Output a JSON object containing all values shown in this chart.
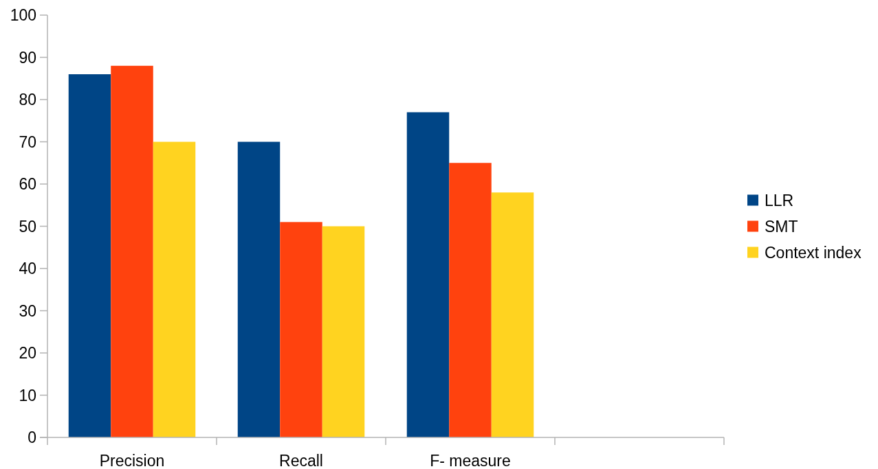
{
  "chart_data": {
    "type": "bar",
    "categories": [
      "Precision",
      "Recall",
      "F- measure",
      null
    ],
    "series": [
      {
        "name": "LLR",
        "color": "#004586",
        "values": [
          86,
          70,
          77,
          null
        ]
      },
      {
        "name": "SMT",
        "color": "#ff420e",
        "values": [
          88,
          51,
          65,
          null
        ]
      },
      {
        "name": "Context index",
        "color": "#ffd320",
        "values": [
          70,
          50,
          58,
          null
        ]
      }
    ],
    "ylim": [
      0,
      100
    ],
    "yticks": [
      0,
      10,
      20,
      30,
      40,
      50,
      60,
      70,
      80,
      90,
      100
    ],
    "grid": false,
    "legend": "right"
  }
}
